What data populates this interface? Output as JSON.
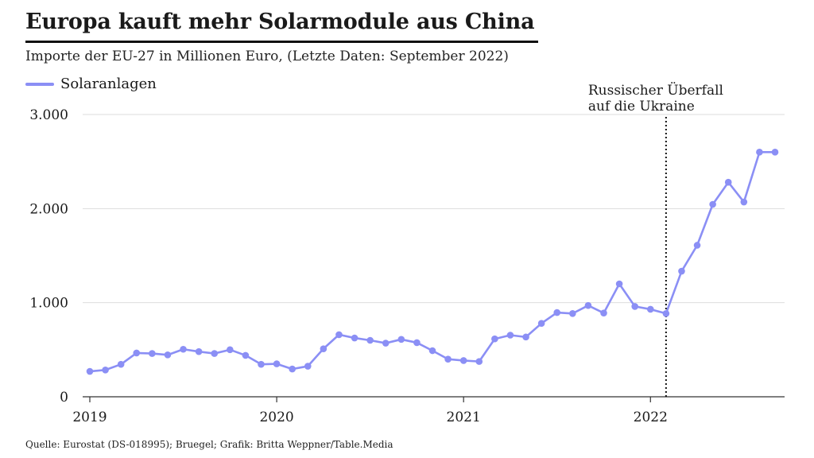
{
  "colors": {
    "series": "#8b8ff5",
    "grid": "#dddddd",
    "axis": "#333333",
    "marker": "#111111"
  },
  "legend": {
    "label": "Solaranlagen"
  },
  "footer": {
    "source": "Quelle: Eurostat (DS-018995); Bruegel; Grafik: Britta Weppner/Table.Media"
  },
  "chart_data": {
    "type": "line",
    "title": "Europa kauft mehr Solarmodule aus China",
    "subtitle": "Importe der EU-27 in Millionen Euro, (Letzte Daten: September 2022)",
    "xlabel": "",
    "ylabel": "",
    "ylim": [
      0,
      3000
    ],
    "yticks": [
      0,
      1000,
      2000,
      3000
    ],
    "ytick_labels": [
      "0",
      "1.000",
      "2.000",
      "3.000"
    ],
    "xticks": [
      0,
      12,
      24,
      36
    ],
    "xtick_labels": [
      "2019",
      "2020",
      "2021",
      "2022"
    ],
    "series": [
      {
        "name": "Solaranlagen",
        "x": [
          0,
          1,
          2,
          3,
          4,
          5,
          6,
          7,
          8,
          9,
          10,
          11,
          12,
          13,
          14,
          15,
          16,
          17,
          18,
          19,
          20,
          21,
          22,
          23,
          24,
          25,
          26,
          27,
          28,
          29,
          30,
          31,
          32,
          33,
          34,
          35,
          36,
          37,
          38,
          39,
          40,
          41,
          42,
          43,
          44
        ],
        "values": [
          270,
          285,
          345,
          465,
          460,
          445,
          505,
          480,
          460,
          500,
          440,
          345,
          350,
          295,
          325,
          510,
          660,
          625,
          600,
          570,
          610,
          575,
          490,
          400,
          385,
          375,
          615,
          655,
          635,
          780,
          895,
          885,
          970,
          890,
          1200,
          960,
          930,
          885,
          1335,
          1610,
          2045,
          2280,
          2070,
          2600,
          2600
        ]
      }
    ],
    "annotations": [
      {
        "x": 37,
        "lines": [
          "Russischer Überfall",
          "auf die Ukraine"
        ],
        "style": "dotted-vertical"
      }
    ]
  }
}
